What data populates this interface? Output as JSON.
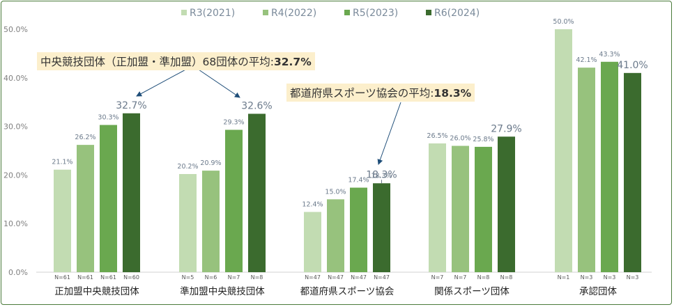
{
  "chart_data": {
    "type": "bar",
    "categories": [
      "正加盟中央競技団体",
      "準加盟中央競技団体",
      "都道府県スポーツ協会",
      "関係スポーツ団体",
      "承認団体"
    ],
    "series": [
      {
        "name": "R3(2021)",
        "color": "#c2dcb2",
        "values": [
          21.1,
          20.2,
          12.4,
          26.5,
          50.0
        ],
        "labels": [
          "21.1%",
          "20.2%",
          "12.4%",
          "26.5%",
          "50.0%"
        ],
        "n": [
          "N=61",
          "N=5",
          "N=47",
          "N=7",
          "N=1"
        ]
      },
      {
        "name": "R4(2022)",
        "color": "#97c27d",
        "values": [
          26.2,
          20.9,
          15.0,
          26.0,
          42.1
        ],
        "labels": [
          "26.2%",
          "20.9%",
          "15.0%",
          "26.0%",
          "42.1%"
        ],
        "n": [
          "N=61",
          "N=6",
          "N=47",
          "N=7",
          "N=3"
        ]
      },
      {
        "name": "R5(2023)",
        "color": "#6aa84f",
        "values": [
          30.3,
          29.3,
          17.4,
          25.8,
          43.3
        ],
        "labels": [
          "30.3%",
          "29.3%",
          "17.4%",
          "25.8%",
          "43.3%"
        ],
        "n": [
          "N=61",
          "N=7",
          "N=47",
          "N=8",
          "N=3"
        ]
      },
      {
        "name": "R6(2024)",
        "color": "#3b6b2e",
        "values": [
          32.7,
          32.6,
          18.3,
          27.9,
          41.0
        ],
        "labels": [
          "32.7%",
          "32.6%",
          "18.3%",
          "27.9%",
          "41.0%"
        ],
        "n": [
          "N=60",
          "N=8",
          "N=47",
          "N=8",
          "N=3"
        ]
      }
    ],
    "ylim": [
      0,
      50
    ],
    "yticks": [
      "0.0%",
      "10.0%",
      "20.0%",
      "30.0%",
      "40.0%",
      "50.0%"
    ],
    "legend_position": "top-center",
    "grid": false
  },
  "annotations": {
    "central": {
      "prefix": "中央競技団体（正加盟・準加盟）68団体の平均:",
      "value": "32.7%"
    },
    "prefectural": {
      "prefix": "都道府県スポーツ協会の平均:",
      "value": "18.3%"
    }
  }
}
